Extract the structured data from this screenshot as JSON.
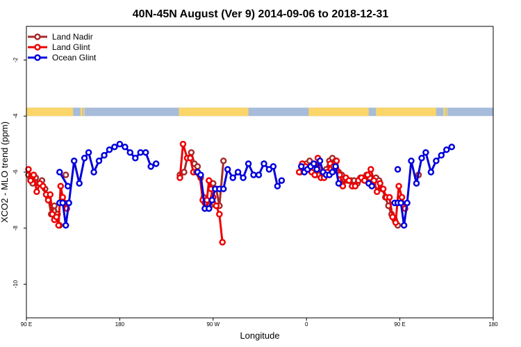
{
  "chart_data": {
    "type": "line",
    "title": "40N-45N August (Ver 9)   2014-09-06 to 2018-12-31",
    "xlabel": "Longitude",
    "ylabel": "XCO2 - MLO trend (ppm)",
    "x_ticks": [
      {
        "value": 90,
        "label": "90 E"
      },
      {
        "value": 180,
        "label": "180"
      },
      {
        "value": 270,
        "label": "90 W"
      },
      {
        "value": 360,
        "label": "0"
      },
      {
        "value": 450,
        "label": "90 E"
      },
      {
        "value": 540,
        "label": "180"
      }
    ],
    "y_ticks": [
      {
        "value": -2,
        "label": "-2"
      },
      {
        "value": -4,
        "label": "-4"
      },
      {
        "value": -6,
        "label": "-6"
      },
      {
        "value": -8,
        "label": "-8"
      },
      {
        "value": -10,
        "label": "-10"
      }
    ],
    "xlim": [
      90,
      540
    ],
    "ylim": [
      -11.2,
      -0.8
    ],
    "legend_position": "top-left",
    "land_ocean_band": {
      "y_range": [
        -4.0,
        -3.7
      ],
      "land_color": "#FAD56A",
      "ocean_color": "#A7BCDA",
      "land_segments": [
        [
          90,
          135
        ],
        [
          142,
          144
        ],
        [
          145,
          146
        ],
        [
          237,
          304
        ],
        [
          362,
          420
        ],
        [
          427,
          485
        ],
        [
          492,
          494
        ],
        [
          495,
          496
        ]
      ]
    },
    "series": [
      {
        "name": "Land Nadir",
        "color": "#A52A2A",
        "segments": [
          [
            [
              92,
              -6.1
            ],
            [
              94,
              -6.2
            ],
            [
              96,
              -6.4
            ],
            [
              99,
              -6.2
            ],
            [
              102,
              -6.4
            ],
            [
              105,
              -6.3
            ],
            [
              108,
              -6.6
            ],
            [
              111,
              -6.9
            ],
            [
              114,
              -7.5
            ],
            [
              117,
              -7.2
            ],
            [
              120,
              -7.5
            ],
            [
              122,
              -7.9
            ]
          ],
          [
            [
              128,
              -6.1
            ]
          ],
          [
            [
              238,
              -6.1
            ],
            [
              242,
              -6.0
            ],
            [
              245,
              -5.5
            ],
            [
              249,
              -5.3
            ],
            [
              252,
              -5.7
            ],
            [
              255,
              -5.8
            ],
            [
              258,
              -6.2
            ],
            [
              261,
              -6.9
            ],
            [
              264,
              -7.1
            ],
            [
              267,
              -7.2
            ],
            [
              270,
              -6.4
            ],
            [
              273,
              -6.6
            ],
            [
              276,
              -7.2
            ],
            [
              280,
              -5.6
            ]
          ],
          [
            [
              354,
              -6.0
            ],
            [
              357,
              -5.8
            ],
            [
              360,
              -5.7
            ],
            [
              363,
              -5.6
            ],
            [
              366,
              -5.9
            ],
            [
              369,
              -6.1
            ],
            [
              372,
              -6.1
            ],
            [
              376,
              -6.0
            ],
            [
              379,
              -5.9
            ],
            [
              382,
              -5.6
            ],
            [
              385,
              -5.5
            ],
            [
              388,
              -5.6
            ],
            [
              391,
              -6.0
            ],
            [
              394,
              -6.1
            ],
            [
              397,
              -6.3
            ],
            [
              400,
              -6.3
            ],
            [
              403,
              -6.3
            ],
            [
              406,
              -6.3
            ],
            [
              409,
              -6.4
            ],
            [
              412,
              -6.2
            ],
            [
              415,
              -6.2
            ],
            [
              418,
              -6.1
            ],
            [
              421,
              -6.2
            ],
            [
              424,
              -6.4
            ],
            [
              427,
              -6.2
            ],
            [
              430,
              -6.3
            ],
            [
              433,
              -6.6
            ],
            [
              436,
              -6.9
            ],
            [
              439,
              -7.2
            ],
            [
              442,
              -7.5
            ],
            [
              445,
              -7.7
            ],
            [
              448,
              -7.9
            ]
          ],
          [
            [
              468,
              -6.1
            ]
          ]
        ]
      },
      {
        "name": "Land Glint",
        "color": "#EE0000",
        "segments": [
          [
            [
              92,
              -5.9
            ],
            [
              94,
              -6.3
            ],
            [
              97,
              -6.1
            ],
            [
              100,
              -6.7
            ],
            [
              103,
              -6.4
            ],
            [
              106,
              -6.5
            ],
            [
              109,
              -6.8
            ],
            [
              111,
              -7.0
            ],
            [
              113,
              -6.8
            ],
            [
              115,
              -7.5
            ],
            [
              117,
              -7.7
            ],
            [
              119,
              -7.6
            ],
            [
              121,
              -7.9
            ],
            [
              123,
              -6.5
            ],
            [
              125,
              -6.9
            ],
            [
              127,
              -7.1
            ],
            [
              129,
              -7.3
            ]
          ],
          [
            [
              238,
              -6.2
            ],
            [
              241,
              -5.0
            ],
            [
              245,
              -5.5
            ],
            [
              248,
              -5.5
            ],
            [
              251,
              -6.0
            ],
            [
              254,
              -6.0
            ],
            [
              257,
              -6.1
            ],
            [
              260,
              -7.0
            ],
            [
              262,
              -7.1
            ],
            [
              264,
              -7.0
            ],
            [
              266,
              -6.3
            ],
            [
              268,
              -6.6
            ],
            [
              270,
              -6.9
            ],
            [
              273,
              -7.2
            ],
            [
              276,
              -7.5
            ],
            [
              279,
              -8.5
            ]
          ],
          [
            [
              353,
              -6.0
            ],
            [
              356,
              -5.7
            ],
            [
              359,
              -5.8
            ],
            [
              362,
              -5.9
            ],
            [
              365,
              -6.0
            ],
            [
              368,
              -6.1
            ],
            [
              371,
              -5.5
            ],
            [
              374,
              -6.2
            ],
            [
              377,
              -6.2
            ],
            [
              380,
              -6.0
            ],
            [
              383,
              -5.7
            ],
            [
              386,
              -5.8
            ],
            [
              389,
              -5.6
            ],
            [
              392,
              -6.1
            ],
            [
              395,
              -6.5
            ],
            [
              398,
              -6.2
            ],
            [
              401,
              -6.3
            ],
            [
              404,
              -6.5
            ],
            [
              407,
              -6.5
            ],
            [
              410,
              -6.3
            ],
            [
              413,
              -6.2
            ],
            [
              416,
              -6.3
            ],
            [
              419,
              -6.1
            ],
            [
              422,
              -5.9
            ],
            [
              425,
              -6.3
            ],
            [
              428,
              -6.7
            ],
            [
              431,
              -6.4
            ],
            [
              434,
              -6.6
            ],
            [
              437,
              -6.9
            ],
            [
              440,
              -6.9
            ],
            [
              443,
              -7.6
            ],
            [
              446,
              -7.8
            ],
            [
              449,
              -6.5
            ],
            [
              452,
              -6.9
            ],
            [
              455,
              -7.3
            ]
          ]
        ]
      },
      {
        "name": "Ocean Glint",
        "color": "#0000DD",
        "segments": [
          [
            [
              122,
              -7.1
            ],
            [
              125,
              -7.1
            ],
            [
              128,
              -7.9
            ],
            [
              131,
              -7.1
            ],
            [
              136,
              -5.6
            ],
            [
              141,
              -6.4
            ],
            [
              146,
              -5.5
            ],
            [
              150,
              -5.3
            ],
            [
              155,
              -6.0
            ],
            [
              160,
              -5.6
            ],
            [
              165,
              -5.4
            ],
            [
              170,
              -5.2
            ],
            [
              175,
              -5.1
            ],
            [
              180,
              -5.0
            ],
            [
              185,
              -5.1
            ],
            [
              190,
              -5.3
            ],
            [
              195,
              -5.5
            ],
            [
              200,
              -5.3
            ],
            [
              205,
              -5.3
            ],
            [
              210,
              -5.8
            ],
            [
              215,
              -5.7
            ]
          ],
          [
            [
              122,
              -6.0
            ],
            [
              130,
              -6.5
            ]
          ],
          [
            [
              255,
              -6.0
            ],
            [
              258,
              -6.1
            ],
            [
              262,
              -7.3
            ],
            [
              266,
              -7.3
            ],
            [
              269,
              -7.0
            ],
            [
              272,
              -6.6
            ],
            [
              276,
              -6.6
            ],
            [
              280,
              -6.6
            ],
            [
              284,
              -5.9
            ],
            [
              289,
              -6.2
            ],
            [
              294,
              -6.0
            ],
            [
              299,
              -6.2
            ],
            [
              304,
              -5.7
            ],
            [
              309,
              -6.1
            ],
            [
              314,
              -6.1
            ],
            [
              319,
              -5.7
            ],
            [
              324,
              -5.9
            ],
            [
              328,
              -5.8
            ],
            [
              332,
              -6.5
            ],
            [
              336,
              -6.3
            ]
          ],
          [
            [
              355,
              -5.8
            ],
            [
              358,
              -6.0
            ],
            [
              361,
              -5.9
            ],
            [
              364,
              -5.8
            ],
            [
              367,
              -5.7
            ],
            [
              370,
              -5.9
            ],
            [
              373,
              -5.6
            ],
            [
              376,
              -6.0
            ],
            [
              379,
              -6.1
            ],
            [
              382,
              -6.1
            ],
            [
              385,
              -6.0
            ],
            [
              388,
              -5.8
            ],
            [
              391,
              -6.4
            ]
          ],
          [
            [
              420,
              -6.4
            ],
            [
              423,
              -6.5
            ]
          ],
          [
            [
              445,
              -7.1
            ],
            [
              448,
              -7.1
            ],
            [
              451,
              -7.1
            ],
            [
              454,
              -7.9
            ],
            [
              457,
              -7.1
            ],
            [
              461,
              -5.6
            ],
            [
              466,
              -6.4
            ],
            [
              471,
              -5.5
            ],
            [
              475,
              -5.3
            ],
            [
              480,
              -6.0
            ],
            [
              485,
              -5.6
            ],
            [
              490,
              -5.4
            ],
            [
              495,
              -5.2
            ],
            [
              500,
              -5.1
            ]
          ],
          [
            [
              448,
              -5.9
            ]
          ]
        ]
      }
    ]
  }
}
